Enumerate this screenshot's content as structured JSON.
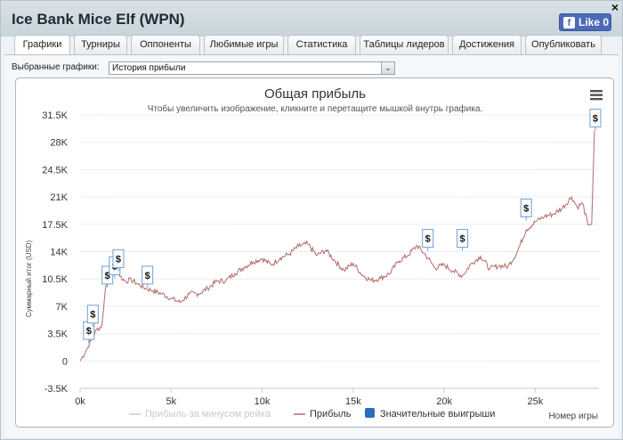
{
  "window": {
    "title": "Ice Bank Mice Elf (WPN)",
    "close": "×",
    "like_label": "Like 0",
    "fb_glyph": "f"
  },
  "tabs": [
    {
      "label": "Графики"
    },
    {
      "label": "Турниры"
    },
    {
      "label": "Оппоненты"
    },
    {
      "label": "Любимые игры"
    },
    {
      "label": "Статистика"
    },
    {
      "label": "Таблицы лидеров"
    },
    {
      "label": "Достижения"
    },
    {
      "label": "Опубликовать"
    }
  ],
  "selector": {
    "label": "Выбранные графики:",
    "value": "История прибыли",
    "arrow": "⌄"
  },
  "chart_data": {
    "type": "line",
    "title": "Общая прибыль",
    "subtitle": "Чтобы увеличить изображение, кликните и перетащите мышкой внутрь графика.",
    "ylabel": "Суммарный итог (USD)",
    "xlabel": "Номер игры",
    "ylim": [
      -3500,
      31500
    ],
    "xlim": [
      0,
      28500
    ],
    "y_ticks": [
      "31.5K",
      "28K",
      "24.5K",
      "21K",
      "17.5K",
      "14K",
      "10.5K",
      "7K",
      "3.5K",
      "0",
      "-3.5K"
    ],
    "y_tick_values": [
      31500,
      28000,
      24500,
      21000,
      17500,
      14000,
      10500,
      7000,
      3500,
      0,
      -3500
    ],
    "x_ticks": [
      "0k",
      "5k",
      "10k",
      "15k",
      "20k",
      "25k"
    ],
    "x_tick_values": [
      0,
      5000,
      10000,
      15000,
      20000,
      25000
    ],
    "grid": "horizontal dotted",
    "legend": "bottom",
    "series": [
      {
        "name": "Прибыль за минусом рейка",
        "color": "#cccccc",
        "hidden": true
      },
      {
        "name": "Прибыль",
        "color": "#b36a6a",
        "x": [
          0,
          300,
          600,
          900,
          1200,
          1400,
          1600,
          1800,
          2000,
          2200,
          2500,
          2800,
          3200,
          3600,
          4000,
          4500,
          5000,
          5500,
          6000,
          6500,
          7000,
          7500,
          8000,
          8500,
          9000,
          9500,
          10000,
          10500,
          11000,
          11500,
          12000,
          12500,
          13000,
          13500,
          14000,
          14500,
          15000,
          15500,
          16000,
          16500,
          17000,
          17500,
          18000,
          18500,
          19000,
          19500,
          20000,
          20500,
          21000,
          21500,
          22000,
          22500,
          23000,
          23500,
          24000,
          24500,
          25000,
          25500,
          26000,
          26500,
          27000,
          27300,
          27600,
          27900,
          28100,
          28250
        ],
        "y": [
          0,
          1200,
          2600,
          4000,
          4500,
          9500,
          10300,
          11100,
          11500,
          10800,
          10200,
          10400,
          9800,
          9300,
          9000,
          8600,
          8000,
          7500,
          8600,
          8600,
          9300,
          10200,
          10300,
          11200,
          12000,
          12700,
          13100,
          12300,
          13200,
          13700,
          14700,
          15000,
          13500,
          14200,
          12800,
          11600,
          12500,
          11000,
          10300,
          10600,
          11200,
          12800,
          13500,
          14800,
          13500,
          11900,
          12300,
          11500,
          10900,
          12500,
          13400,
          11800,
          12200,
          12100,
          13900,
          16800,
          17800,
          18500,
          18800,
          19600,
          21000,
          19700,
          20200,
          17400,
          17500,
          29500
        ]
      },
      {
        "name": "Значительные выигрыши",
        "color": "#2d6cc0"
      }
    ],
    "markers": [
      {
        "x": 480,
        "y": 2300
      },
      {
        "x": 700,
        "y": 4400
      },
      {
        "x": 1500,
        "y": 9400
      },
      {
        "x": 1900,
        "y": 10600
      },
      {
        "x": 2100,
        "y": 11500
      },
      {
        "x": 3700,
        "y": 9400
      },
      {
        "x": 19100,
        "y": 14100
      },
      {
        "x": 21000,
        "y": 14100
      },
      {
        "x": 24500,
        "y": 18000
      },
      {
        "x": 28300,
        "y": 29500
      }
    ],
    "marker_glyph": "$"
  }
}
